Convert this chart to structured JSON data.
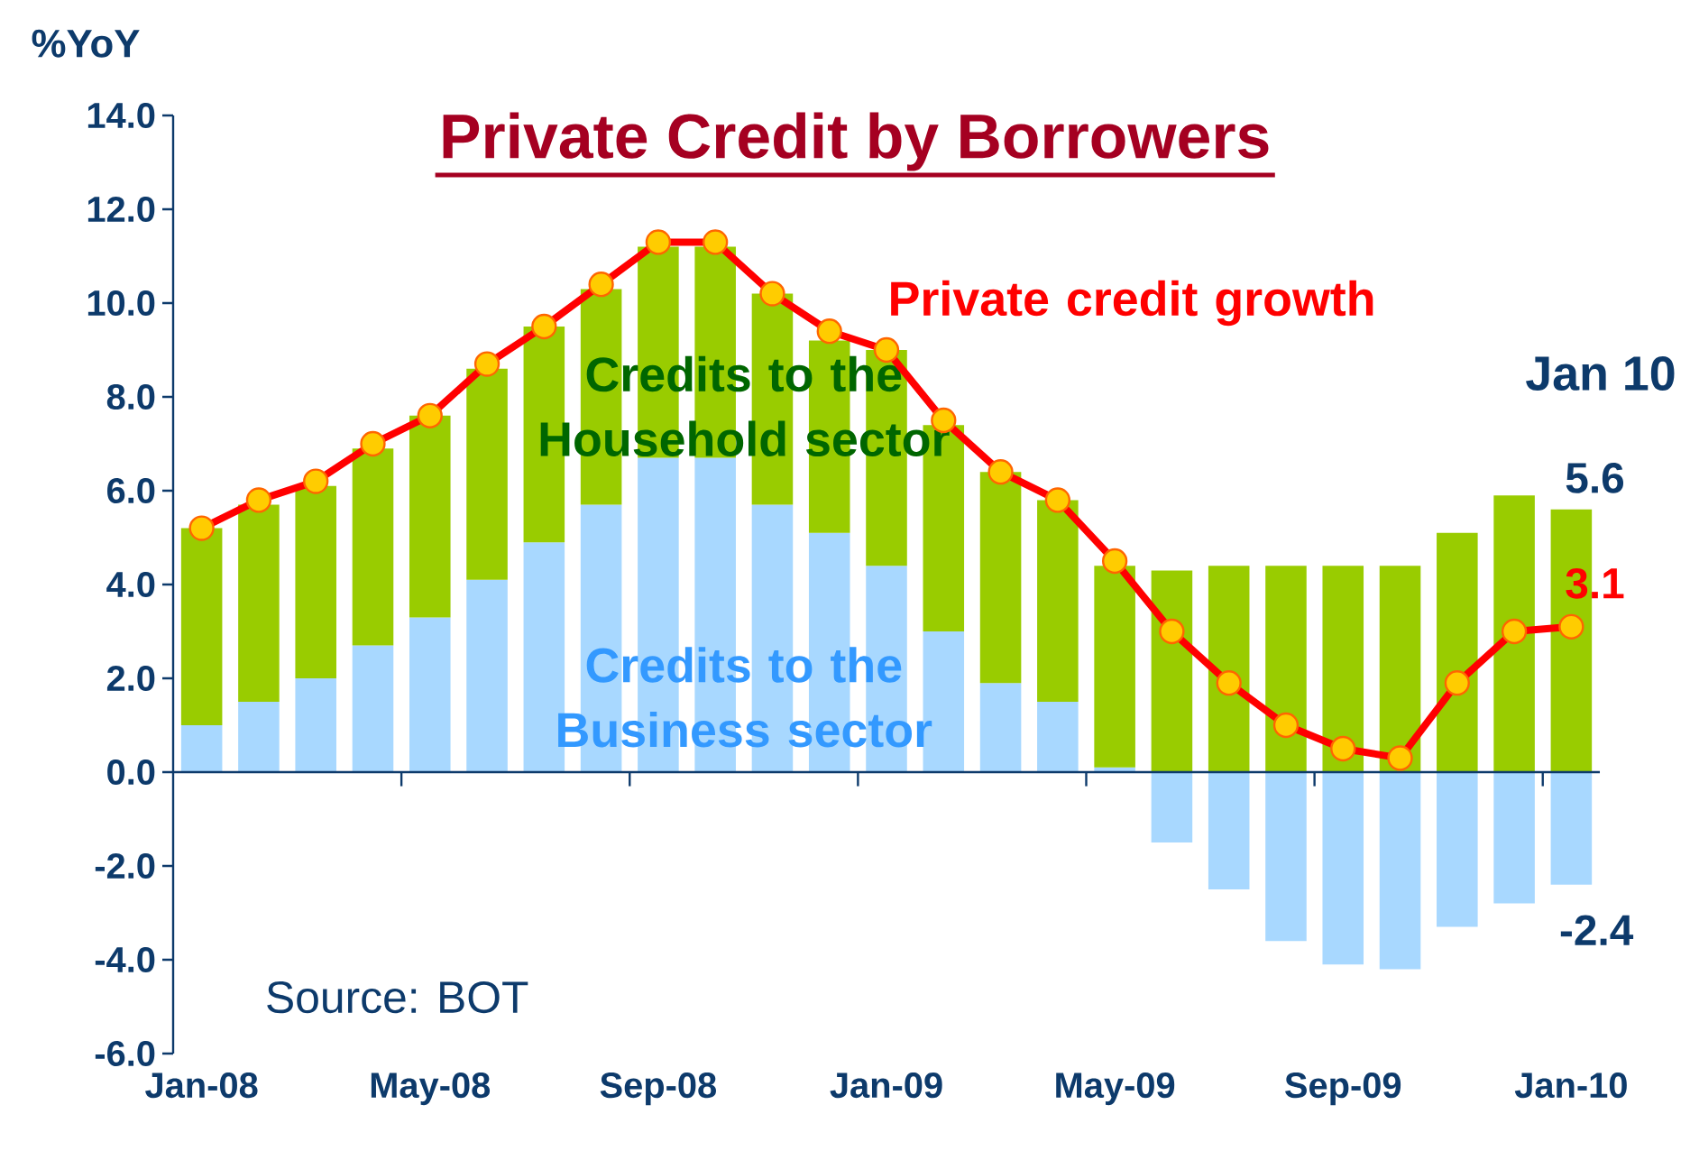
{
  "chart_data": {
    "type": "bar",
    "stacked": true,
    "title": "Private Credit by Borrowers",
    "ylabel": "%YoY",
    "categories": [
      "Jan-08",
      null,
      null,
      null,
      "May-08",
      null,
      null,
      null,
      "Sep-08",
      null,
      null,
      null,
      "Jan-09",
      null,
      null,
      null,
      "May-09",
      null,
      null,
      null,
      "Sep-09",
      null,
      null,
      null,
      "Jan-10"
    ],
    "ylim": [
      -6,
      14
    ],
    "yticks": [
      {
        "value": -6,
        "label": "-6.0"
      },
      {
        "value": -4,
        "label": "-4.0"
      },
      {
        "value": -2,
        "label": "-2.0"
      },
      {
        "value": 0,
        "label": "0.0"
      },
      {
        "value": 2,
        "label": "2.0"
      },
      {
        "value": 4,
        "label": "4.0"
      },
      {
        "value": 6,
        "label": "6.0"
      },
      {
        "value": 8,
        "label": "8.0"
      },
      {
        "value": 10,
        "label": "10.0"
      },
      {
        "value": 12,
        "label": "12.0"
      },
      {
        "value": 14,
        "label": "14.0"
      }
    ],
    "series": [
      {
        "name": "Credits to the Business sector",
        "color": "#a8d8ff",
        "values": [
          1.0,
          1.5,
          2.0,
          2.7,
          3.3,
          4.1,
          4.9,
          5.7,
          6.7,
          6.7,
          5.7,
          5.1,
          4.4,
          3.0,
          1.9,
          1.5,
          0.1,
          -1.5,
          -2.5,
          -3.6,
          -4.1,
          -4.2,
          -3.3,
          -2.8,
          -2.4
        ],
        "value_labels": [
          null,
          null,
          null,
          null,
          null,
          null,
          null,
          null,
          null,
          null,
          null,
          null,
          null,
          null,
          null,
          null,
          null,
          null,
          null,
          null,
          null,
          null,
          null,
          null,
          "-2.4"
        ]
      },
      {
        "name": "Credits to the Household sector",
        "color": "#99cc00",
        "values": [
          4.2,
          4.2,
          4.1,
          4.2,
          4.3,
          4.5,
          4.6,
          4.6,
          4.5,
          4.5,
          4.5,
          4.1,
          4.6,
          4.4,
          4.5,
          4.3,
          4.3,
          4.3,
          4.4,
          4.4,
          4.4,
          4.4,
          5.1,
          5.9,
          5.6
        ],
        "value_labels": [
          null,
          null,
          null,
          null,
          null,
          null,
          null,
          null,
          null,
          null,
          null,
          null,
          null,
          null,
          null,
          null,
          null,
          null,
          null,
          null,
          null,
          null,
          null,
          null,
          "5.6"
        ]
      },
      {
        "name": "Private credit growth",
        "type": "line",
        "marker": "circle",
        "color": "#ff0000",
        "values": [
          5.2,
          5.8,
          6.2,
          7.0,
          7.6,
          8.7,
          9.5,
          10.4,
          11.3,
          11.3,
          10.2,
          9.4,
          9.0,
          7.5,
          6.4,
          5.8,
          4.5,
          3.0,
          1.9,
          1.0,
          0.5,
          0.3,
          1.9,
          3.0,
          3.1
        ],
        "value_labels": [
          null,
          null,
          null,
          null,
          null,
          null,
          null,
          null,
          null,
          null,
          null,
          null,
          null,
          null,
          null,
          null,
          null,
          null,
          null,
          null,
          null,
          null,
          null,
          null,
          "3.1"
        ]
      }
    ],
    "ref_lines": [
      {
        "axis": "y",
        "value": 0,
        "color": "#0d3a6b"
      }
    ],
    "annotations": [
      "Jan 10",
      "Source: BOT"
    ]
  }
}
